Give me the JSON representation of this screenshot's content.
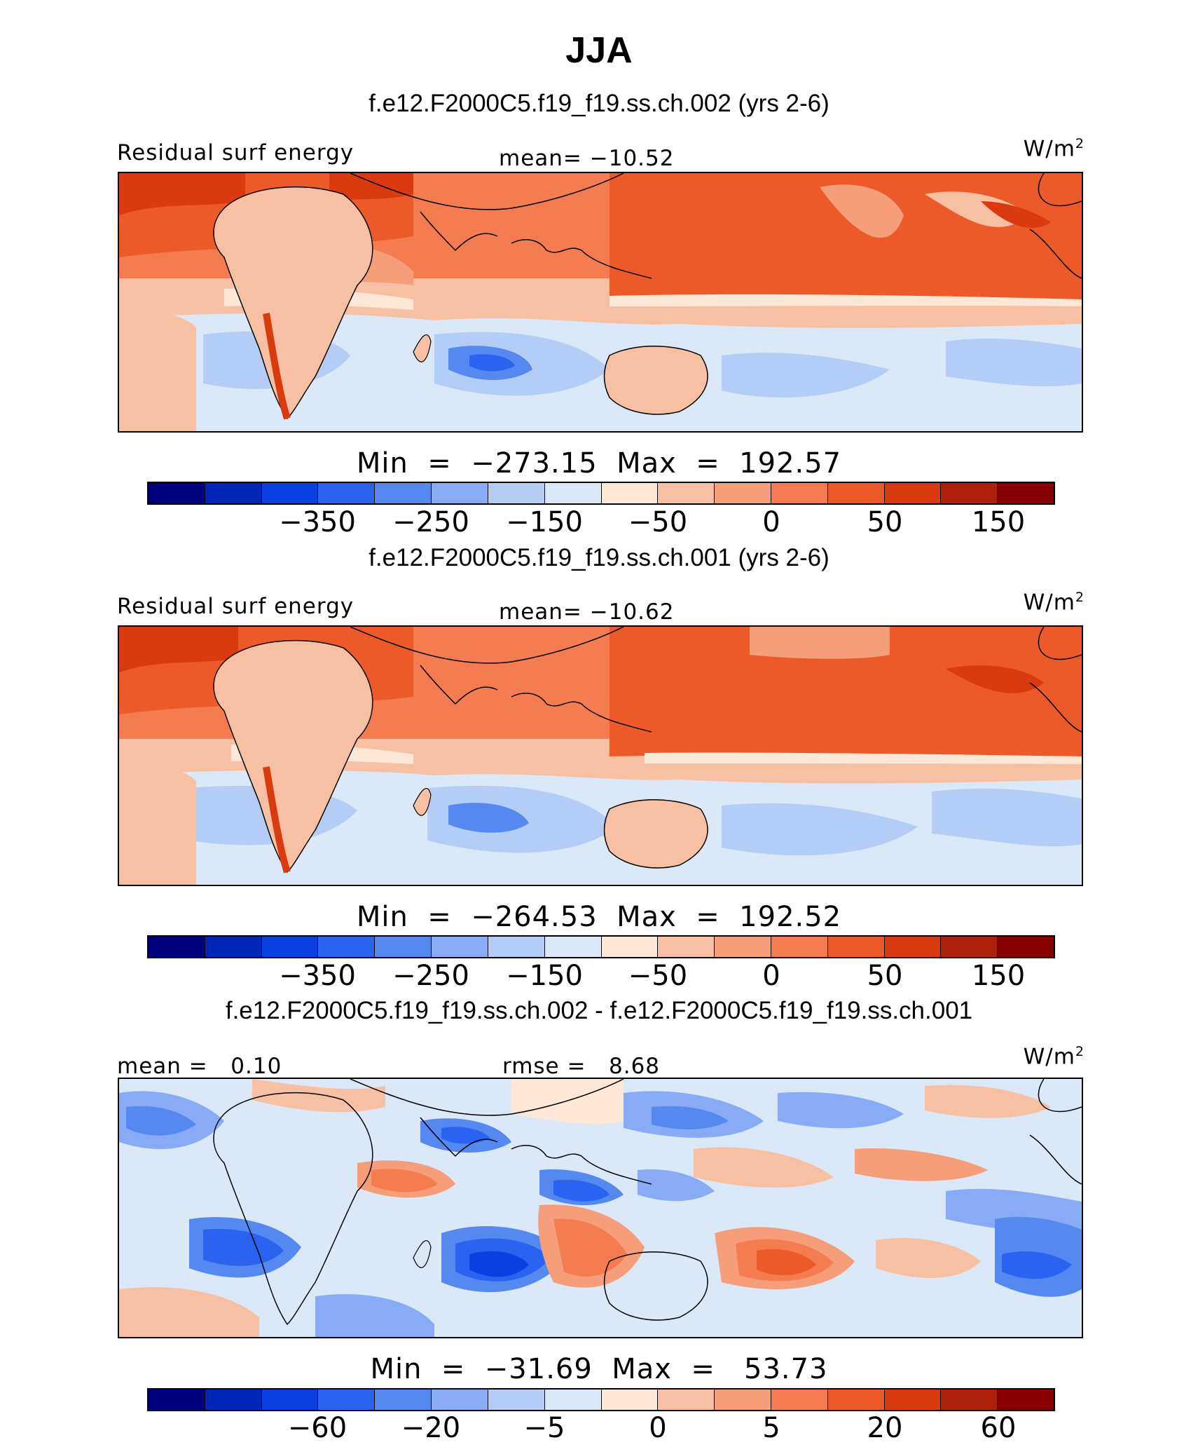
{
  "title": "JJA",
  "colors": [
    "#00007f",
    "#0026b5",
    "#0940e0",
    "#2a63ef",
    "#5689f0",
    "#87acf5",
    "#b4cdf7",
    "#dbe8f7",
    "#fde8d8",
    "#f8c0a3",
    "#f69e7a",
    "#f47c50",
    "#ec5a2a",
    "#d93a10",
    "#ad200b",
    "#870000"
  ],
  "chart_data": [
    {
      "type": "heatmap",
      "case_title": "f.e12.F2000C5.f19_f19.ss.ch.002 (yrs 2-6)",
      "variable": "Residual surf energy",
      "stat_text": "mean= −10.52",
      "units": "W/m",
      "units_sup": "2",
      "minmax_text": "Min  =  −273.15  Max  =  192.57",
      "min": -273.15,
      "max": 192.57,
      "mean": -10.52,
      "colorbar_ticks": [
        "−350",
        "−250",
        "−150",
        "−50",
        "0",
        "50",
        "150"
      ],
      "colorbar_tick_bounds": [
        3,
        5,
        7,
        9,
        11,
        13,
        15
      ]
    },
    {
      "type": "heatmap",
      "case_title": "f.e12.F2000C5.f19_f19.ss.ch.001 (yrs 2-6)",
      "variable": "Residual surf energy",
      "stat_text": "mean= −10.62",
      "units": "W/m",
      "units_sup": "2",
      "minmax_text": "Min  =  −264.53  Max  =  192.52",
      "min": -264.53,
      "max": 192.52,
      "mean": -10.62,
      "colorbar_ticks": [
        "−350",
        "−250",
        "−150",
        "−50",
        "0",
        "50",
        "150"
      ],
      "colorbar_tick_bounds": [
        3,
        5,
        7,
        9,
        11,
        13,
        15
      ]
    },
    {
      "type": "heatmap",
      "case_title": "f.e12.F2000C5.f19_f19.ss.ch.002 - f.e12.F2000C5.f19_f19.ss.ch.001",
      "stat_left_text": "mean =   0.10",
      "stat_text": "rmse =   8.68",
      "units": "W/m",
      "units_sup": "2",
      "minmax_text": "Min  =  −31.69  Max  =   53.73",
      "min": -31.69,
      "max": 53.73,
      "mean": 0.1,
      "rmse": 8.68,
      "colorbar_ticks": [
        "−60",
        "−20",
        "−5",
        "0",
        "5",
        "20",
        "60"
      ],
      "colorbar_tick_bounds": [
        3,
        5,
        7,
        9,
        11,
        13,
        15
      ]
    }
  ]
}
